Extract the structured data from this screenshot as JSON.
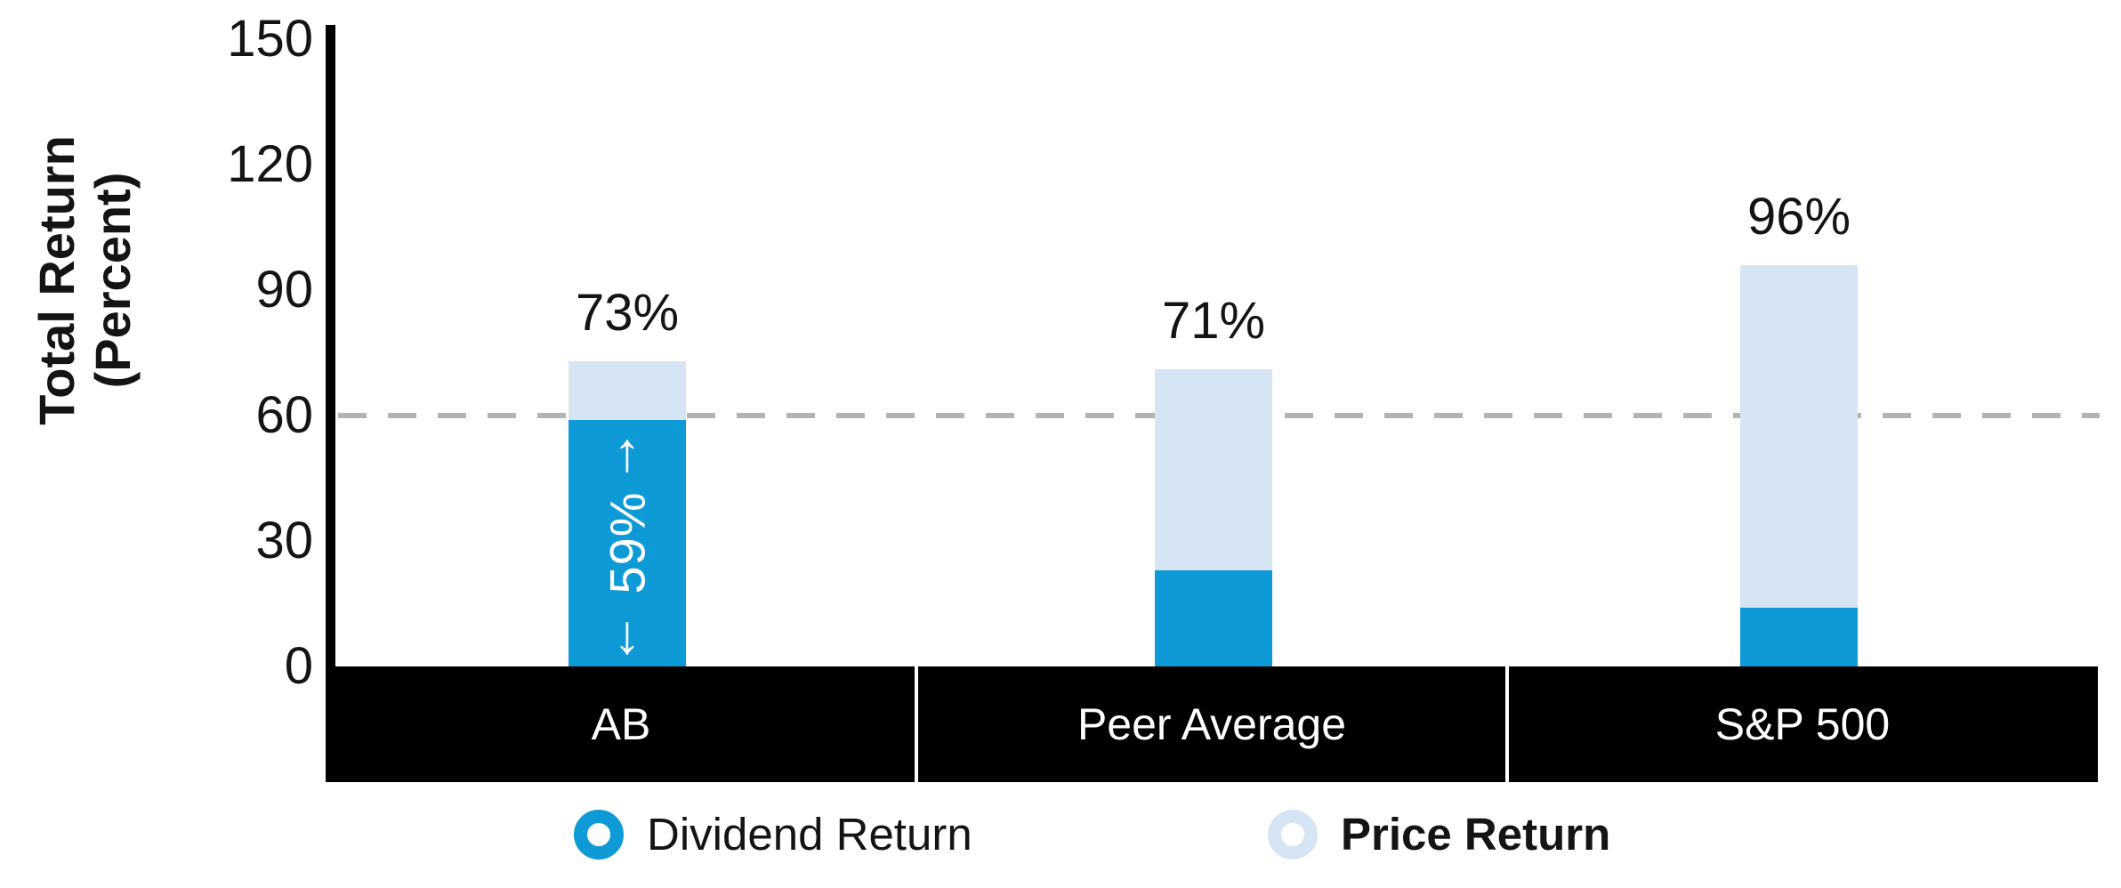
{
  "chart_data": {
    "type": "bar",
    "stacked": true,
    "ylabel_line1": "Total Return",
    "ylabel_line2": "(Percent)",
    "categories": [
      "AB",
      "Peer Average",
      "S&P 500"
    ],
    "series": [
      {
        "name": "Dividend Return",
        "color": "#0e9ad6",
        "values": [
          59,
          23,
          14
        ]
      },
      {
        "name": "Price Return",
        "color": "#d6e5f4",
        "values": [
          14,
          48,
          82
        ]
      }
    ],
    "totals_labels": [
      "73%",
      "71%",
      "96%"
    ],
    "yticks": [
      "0",
      "30",
      "60",
      "90",
      "120",
      "150"
    ],
    "ytick_values": [
      0,
      30,
      60,
      90,
      120,
      150
    ],
    "ylim": [
      0,
      150
    ],
    "gridline_value": 60,
    "gridline_style": "dashed",
    "gridline_color": "#b3b3b3",
    "axis_band_color": "#000000",
    "category_text_color": "#ffffff",
    "annotation": {
      "category": "AB",
      "series": "Dividend Return",
      "text": "59%",
      "up_arrow": "↑",
      "down_arrow": "↓"
    },
    "legend": [
      {
        "label": "Dividend Return",
        "color": "#0e9ad6",
        "bold": false
      },
      {
        "label": "Price Return",
        "color": "#d6e5f4",
        "bold": true
      }
    ]
  }
}
